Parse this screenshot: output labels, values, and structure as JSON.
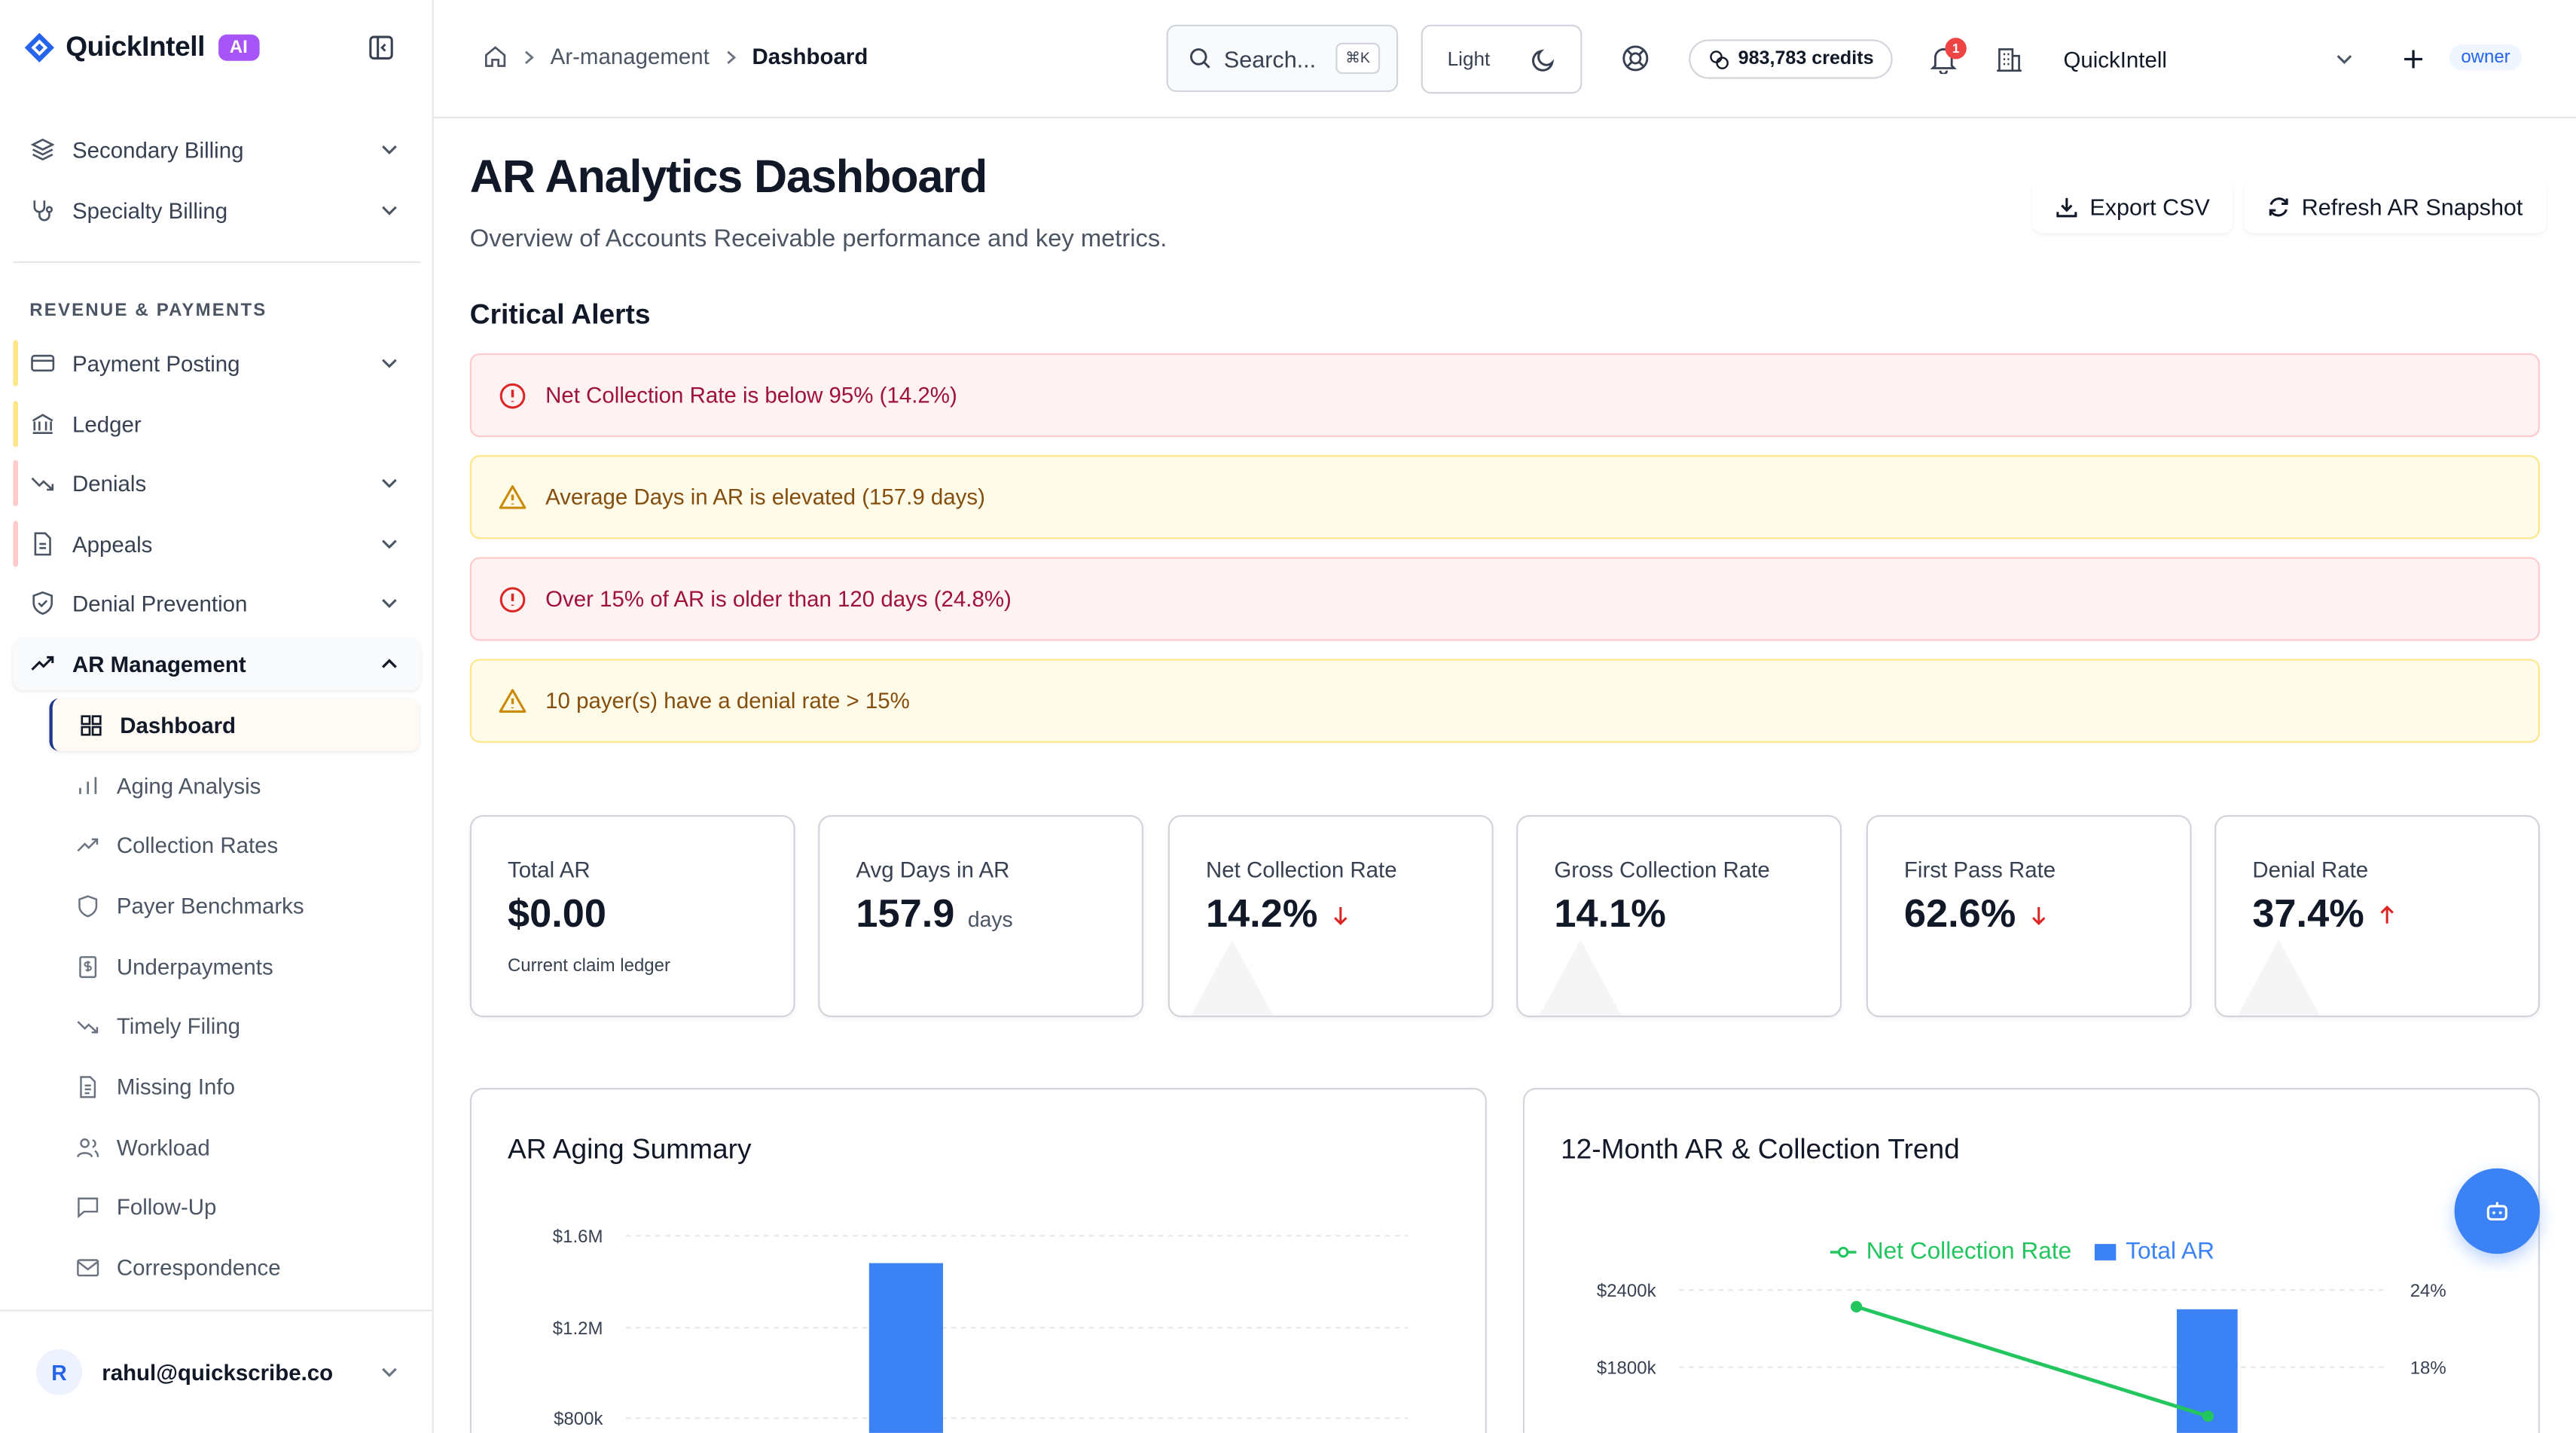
{
  "brand": {
    "name": "QuickIntell",
    "badge": "AI"
  },
  "sidebar": {
    "top_items": [
      {
        "label": "Secondary Billing"
      },
      {
        "label": "Specialty Billing"
      }
    ],
    "section_label": "REVENUE & PAYMENTS",
    "items": [
      {
        "label": "Payment Posting"
      },
      {
        "label": "Ledger"
      },
      {
        "label": "Denials"
      },
      {
        "label": "Appeals"
      },
      {
        "label": "Denial Prevention"
      },
      {
        "label": "AR Management"
      }
    ],
    "sub_items": [
      {
        "label": "Dashboard"
      },
      {
        "label": "Aging Analysis"
      },
      {
        "label": "Collection Rates"
      },
      {
        "label": "Payer Benchmarks"
      },
      {
        "label": "Underpayments"
      },
      {
        "label": "Timely Filing"
      },
      {
        "label": "Missing Info"
      },
      {
        "label": "Workload"
      },
      {
        "label": "Follow-Up"
      },
      {
        "label": "Correspondence"
      }
    ],
    "user": {
      "initial": "R",
      "email": "rahul@quickscribe.co"
    }
  },
  "topbar": {
    "breadcrumb": [
      "Ar-management",
      "Dashboard"
    ],
    "search_placeholder": "Search...",
    "search_shortcut": "⌘K",
    "theme_label": "Light",
    "credits": "983,783 credits",
    "notification_count": "1",
    "org_name": "QuickIntell",
    "role": "owner"
  },
  "page": {
    "title": "AR Analytics Dashboard",
    "subtitle": "Overview of Accounts Receivable performance and key metrics.",
    "export_label": "Export CSV",
    "refresh_label": "Refresh AR Snapshot",
    "alerts_title": "Critical Alerts",
    "alerts": [
      {
        "text": "Net Collection Rate is below 95% (14.2%)",
        "level": "error"
      },
      {
        "text": "Average Days in AR is elevated (157.9 days)",
        "level": "warning"
      },
      {
        "text": "Over 15% of AR is older than 120 days (24.8%)",
        "level": "error"
      },
      {
        "text": "10 payer(s) have a denial rate > 15%",
        "level": "warning"
      }
    ],
    "metrics": [
      {
        "label": "Total AR",
        "value": "$0.00",
        "unit": "",
        "note": "Current claim ledger",
        "trend": ""
      },
      {
        "label": "Avg Days in AR",
        "value": "157.9",
        "unit": "days",
        "note": "",
        "trend": ""
      },
      {
        "label": "Net Collection Rate",
        "value": "14.2%",
        "unit": "",
        "note": "",
        "trend": "down"
      },
      {
        "label": "Gross Collection Rate",
        "value": "14.1%",
        "unit": "",
        "note": "",
        "trend": ""
      },
      {
        "label": "First Pass Rate",
        "value": "62.6%",
        "unit": "",
        "note": "",
        "trend": "down"
      },
      {
        "label": "Denial Rate",
        "value": "37.4%",
        "unit": "",
        "note": "",
        "trend": "up"
      }
    ]
  },
  "chart_data": [
    {
      "type": "bar",
      "title": "AR Aging Summary",
      "y_ticks": [
        "$1.6M",
        "$1.2M",
        "$800k"
      ],
      "ylim_visible": [
        800000,
        1600000
      ],
      "bars": [
        {
          "value": 1480000
        }
      ]
    },
    {
      "type": "line",
      "title": "12-Month AR & Collection Trend",
      "legend": [
        "Net Collection Rate",
        "Total AR"
      ],
      "legend_position": "top",
      "y_left_ticks": [
        "$2400k",
        "$1800k"
      ],
      "y_right_ticks": [
        "24%",
        "18%"
      ],
      "series": [
        {
          "name": "Net Collection Rate",
          "values": [
            22.7,
            14.2
          ],
          "color": "#22c55e"
        },
        {
          "name": "Total AR",
          "values": [
            2250
          ],
          "color": "#3b82f6"
        }
      ]
    }
  ],
  "colors": {
    "accent": "#3b82f6",
    "error": "#dc2626",
    "warning": "#ca8a04",
    "line": "#22c55e"
  }
}
